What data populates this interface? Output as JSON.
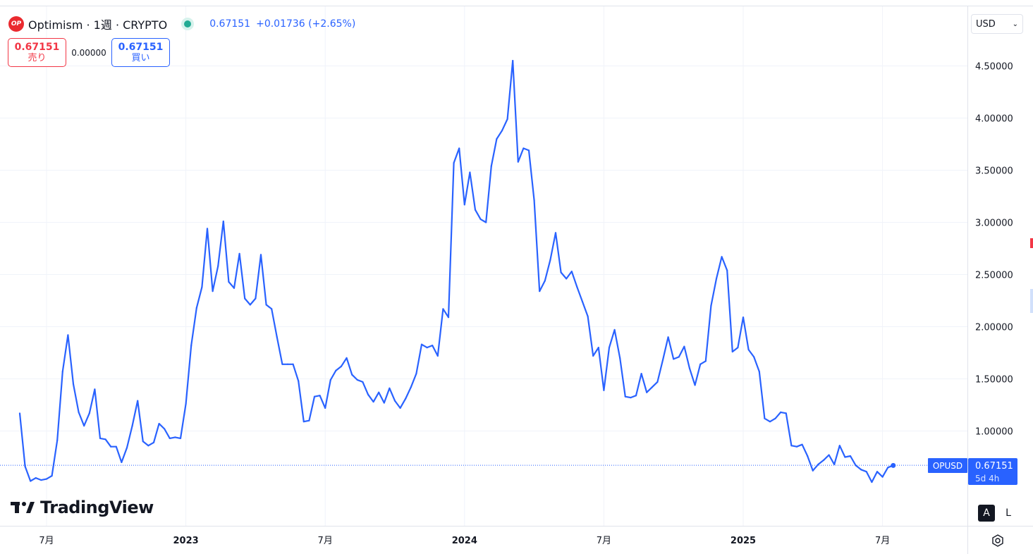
{
  "header": {
    "symbol_logo": "OP",
    "title": "Optimism · 1週 · CRYPTO",
    "price": "0.67151",
    "change": "+0.01736 (+2.65%)"
  },
  "trade": {
    "sell_price": "0.67151",
    "sell_label": "売り",
    "spread": "0.00000",
    "buy_price": "0.67151",
    "buy_label": "買い"
  },
  "currency": {
    "value": "USD"
  },
  "branding": {
    "name": "TradingView"
  },
  "scale_buttons": {
    "auto": "A",
    "log": "L"
  },
  "price_badge": {
    "symbol": "OPUSD",
    "price": "0.67151",
    "countdown": "5d 4h"
  },
  "colors": {
    "line": "#2962ff",
    "badge": "#2962ff",
    "up": "#22ab94",
    "down": "#f23645"
  },
  "chart_data": {
    "type": "line",
    "series": [
      {
        "values": [
          1.17,
          0.66,
          0.52,
          0.55,
          0.53,
          0.54,
          0.57,
          0.91,
          1.57,
          1.92,
          1.45,
          1.18,
          1.05,
          1.17,
          1.4,
          0.93,
          0.92,
          0.85,
          0.85,
          0.7,
          0.84,
          1.05,
          1.29,
          0.9,
          0.86,
          0.89,
          1.07,
          1.02,
          0.93,
          0.94,
          0.93,
          1.26,
          1.82,
          2.18,
          2.38,
          2.94,
          2.34,
          2.58,
          3.01,
          2.43,
          2.37,
          2.7,
          2.27,
          2.21,
          2.27,
          2.69,
          2.21,
          2.17,
          1.9,
          1.64,
          1.64,
          1.64,
          1.48,
          1.09,
          1.1,
          1.33,
          1.34,
          1.22,
          1.49,
          1.58,
          1.62,
          1.7,
          1.54,
          1.49,
          1.47,
          1.35,
          1.28,
          1.37,
          1.27,
          1.41,
          1.29,
          1.22,
          1.31,
          1.42,
          1.55,
          1.83,
          1.8,
          1.82,
          1.72,
          2.17,
          2.09,
          3.57,
          3.71,
          3.17,
          3.48,
          3.12,
          3.03,
          3.0,
          3.54,
          3.8,
          3.88,
          3.99,
          4.55,
          3.58,
          3.71,
          3.69,
          3.21,
          2.34,
          2.44,
          2.64,
          2.9,
          2.52,
          2.46,
          2.53,
          2.38,
          2.24,
          2.1,
          1.72,
          1.8,
          1.39,
          1.8,
          1.97,
          1.7,
          1.33,
          1.32,
          1.34,
          1.55,
          1.37,
          1.42,
          1.47,
          1.68,
          1.9,
          1.69,
          1.71,
          1.81,
          1.6,
          1.44,
          1.64,
          1.67,
          2.2,
          2.46,
          2.67,
          2.54,
          1.76,
          1.8,
          2.09,
          1.78,
          1.71,
          1.57,
          1.12,
          1.09,
          1.12,
          1.18,
          1.17,
          0.86,
          0.85,
          0.87,
          0.76,
          0.62,
          0.68,
          0.72,
          0.77,
          0.68,
          0.86,
          0.75,
          0.76,
          0.67,
          0.63,
          0.61,
          0.51,
          0.61,
          0.56,
          0.65,
          0.67
        ]
      }
    ],
    "y_ticks": [
      "1.00000",
      "1.50000",
      "2.00000",
      "2.50000",
      "3.00000",
      "3.50000",
      "4.00000",
      "4.50000"
    ],
    "y_tick_values": [
      1.0,
      1.5,
      2.0,
      2.5,
      3.0,
      3.5,
      4.0,
      4.5
    ],
    "x_ticks": [
      "7月",
      "2023",
      "7月",
      "2024",
      "7月",
      "2025",
      "7月"
    ],
    "x_tick_bold": [
      false,
      true,
      false,
      true,
      false,
      true,
      false
    ],
    "x_tick_index": [
      5,
      31,
      57,
      83,
      109,
      135,
      161
    ],
    "last_value": 0.67151,
    "grid": true
  }
}
